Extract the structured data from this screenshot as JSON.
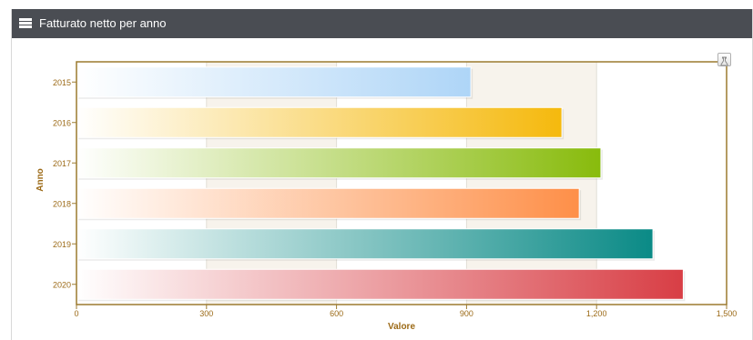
{
  "panel": {
    "title": "Fatturato netto per anno",
    "icon": "list-icon"
  },
  "toolbar": {
    "export_icon": "chart-export-icon"
  },
  "colors": {
    "header_bg": "#4a4d53",
    "plot_border": "#9c7a2f",
    "plot_band": "#f7f3ec",
    "axis_label": "#9c6a17"
  },
  "chart_data": {
    "type": "bar",
    "orientation": "horizontal",
    "categories": [
      "2015",
      "2016",
      "2017",
      "2018",
      "2019",
      "2020"
    ],
    "values": [
      910,
      1120,
      1210,
      1160,
      1330,
      1400
    ],
    "bar_colors": [
      "#aed5f7",
      "#f5b90d",
      "#88bb0c",
      "#fe8f48",
      "#0a8a86",
      "#d83e45"
    ],
    "xlabel": "Valore",
    "ylabel": "Anno",
    "xlim": [
      0,
      1500
    ],
    "xticks": [
      0,
      300,
      600,
      900,
      1200,
      1500
    ],
    "xtick_labels": [
      "0",
      "300",
      "600",
      "900",
      "1,200",
      "1,500"
    ],
    "grid": true,
    "legend": "none"
  }
}
